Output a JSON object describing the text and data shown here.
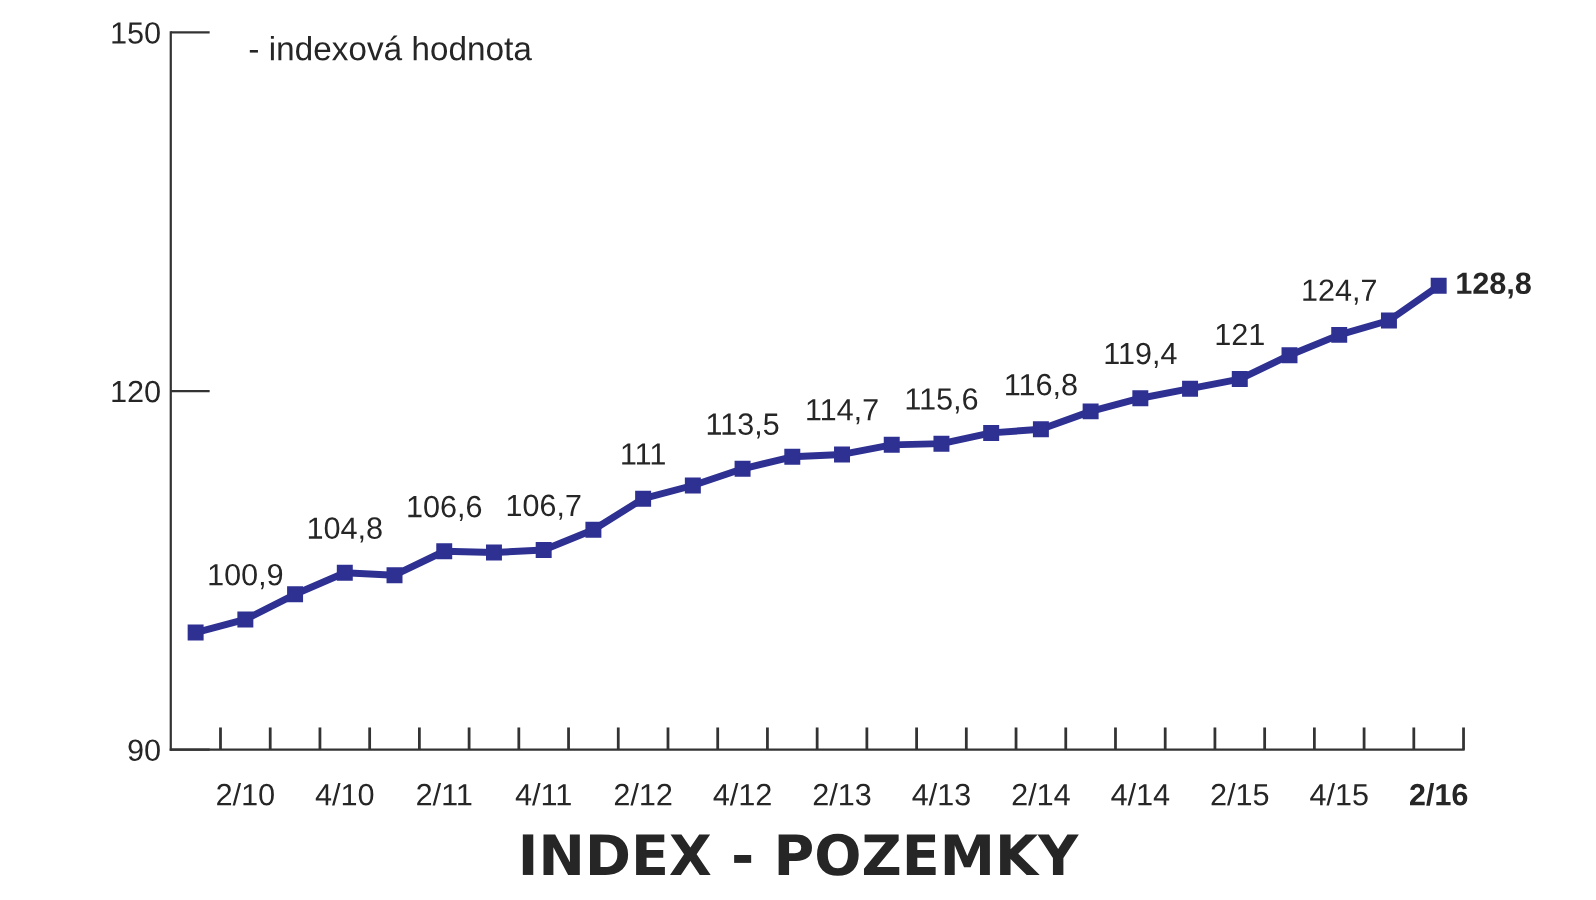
{
  "chart_data": {
    "type": "line",
    "title": "INDEX - POZEMKY",
    "annotations": [
      "- indexová hodnota"
    ],
    "categories": [
      null,
      "2/10",
      null,
      "4/10",
      null,
      "2/11",
      null,
      "4/11",
      null,
      "2/12",
      null,
      "4/12",
      null,
      "2/13",
      null,
      "4/13",
      null,
      "2/14",
      null,
      "4/14",
      null,
      "2/15",
      null,
      "4/15",
      null,
      "2/16"
    ],
    "series": [
      {
        "color": "#2e3192",
        "values": [
          99.8,
          100.9,
          103.0,
          104.8,
          104.6,
          106.6,
          106.5,
          106.7,
          108.4,
          111,
          112.1,
          113.5,
          114.5,
          114.7,
          115.5,
          115.6,
          116.5,
          116.8,
          118.3,
          119.4,
          120.2,
          121,
          123.0,
          124.7,
          125.9,
          128.8
        ],
        "value_labels": [
          null,
          "100,9",
          null,
          "104,8",
          null,
          "106,6",
          null,
          "106,7",
          null,
          "111",
          null,
          "113,5",
          null,
          "114,7",
          null,
          "115,6",
          null,
          "116,8",
          null,
          "119,4",
          null,
          "121",
          null,
          "124,7",
          null,
          "128,8"
        ]
      }
    ],
    "ylim": [
      90,
      150
    ],
    "yticks": [
      90,
      120,
      150
    ],
    "grid": false,
    "marker": "square",
    "line_style": "solid"
  }
}
